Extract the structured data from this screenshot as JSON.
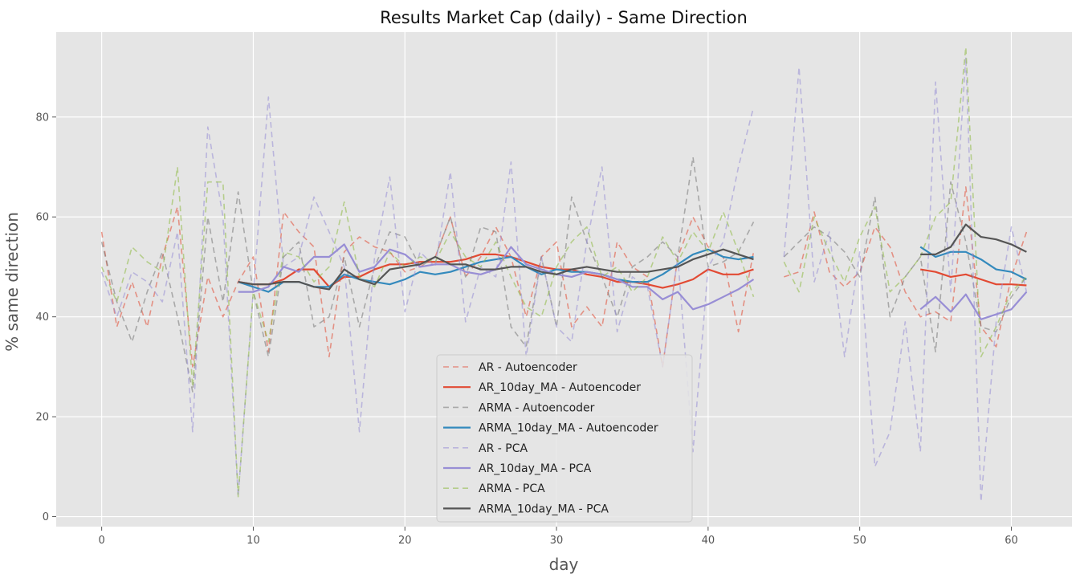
{
  "chart_data": {
    "type": "line",
    "title": "Results Market Cap (daily) - Same Direction",
    "xlabel": "day",
    "ylabel": "% same direction",
    "xlim": [
      -3,
      64
    ],
    "ylim": [
      -2,
      97
    ],
    "xticks": [
      0,
      10,
      20,
      30,
      40,
      50,
      60
    ],
    "yticks": [
      0,
      20,
      40,
      60,
      80
    ],
    "grid": true,
    "legend_position": "lower-center",
    "background": "#e5e5e5",
    "series": [
      {
        "name": "AR - Autoencoder",
        "color": "#E24A33",
        "dashed": true,
        "y": [
          57,
          38,
          47,
          38,
          52,
          62,
          30,
          48,
          40,
          47,
          52,
          33,
          61,
          57,
          54,
          32,
          53,
          56,
          54,
          53,
          49,
          50,
          52,
          60,
          48,
          52,
          58,
          52,
          40,
          52,
          55,
          38,
          42,
          38,
          55,
          50,
          48,
          30,
          52,
          60,
          54,
          52,
          37,
          53,
          null,
          48,
          49,
          61,
          49,
          46,
          49,
          58,
          54,
          45,
          40,
          41,
          39,
          66,
          38,
          34,
          48,
          57
        ]
      },
      {
        "name": "AR_10day_MA - Autoencoder",
        "color": "#E24A33",
        "dashed": false,
        "y": [
          null,
          null,
          null,
          null,
          null,
          null,
          null,
          null,
          null,
          47,
          46.5,
          46.5,
          47.5,
          49.5,
          49.5,
          46,
          48,
          48,
          49.5,
          50.5,
          50.5,
          51,
          51,
          51,
          51.5,
          52.5,
          52.5,
          52,
          51,
          50,
          49.5,
          49.5,
          48.5,
          48,
          47,
          47,
          46.5,
          45.8,
          46.5,
          47.5,
          49.5,
          48.5,
          48.5,
          49.5,
          null,
          null,
          null,
          null,
          null,
          null,
          null,
          null,
          null,
          null,
          49.5,
          49,
          48,
          48.5,
          47.5,
          46.5,
          46.5,
          46.3
        ]
      },
      {
        "name": "ARMA - Autoencoder",
        "color": "#777777",
        "dashed": true,
        "y": [
          55,
          43,
          35,
          45,
          53,
          40,
          25,
          60,
          43,
          65,
          45,
          32,
          52,
          55,
          38,
          40,
          52,
          38,
          50,
          57,
          56,
          50,
          52,
          60,
          48,
          58,
          57,
          38,
          34,
          52,
          38,
          64,
          55,
          48,
          40,
          50,
          52,
          55,
          52,
          72,
          50,
          51,
          53,
          59,
          null,
          52,
          55,
          58,
          56,
          53,
          48,
          64,
          40,
          48,
          52,
          33,
          67,
          55,
          38,
          37,
          44,
          48
        ]
      },
      {
        "name": "ARMA_10day_MA - Autoencoder",
        "color": "#348ABD",
        "dashed": false,
        "y": [
          null,
          null,
          null,
          null,
          null,
          null,
          null,
          null,
          null,
          47,
          46,
          45,
          47,
          47,
          46,
          46,
          48.5,
          47.5,
          47,
          46.5,
          47.5,
          49,
          48.5,
          49,
          50,
          51,
          51.5,
          52,
          50,
          48.5,
          49.5,
          49,
          49,
          48.5,
          47.5,
          47,
          47,
          48.5,
          50.5,
          52.5,
          53.5,
          52,
          51.5,
          52,
          null,
          null,
          null,
          null,
          null,
          null,
          null,
          null,
          null,
          null,
          54,
          52,
          53,
          53,
          51.5,
          49.5,
          49,
          47.5
        ]
      },
      {
        "name": "AR - PCA",
        "color": "#988ED5",
        "dashed": true,
        "y": [
          49,
          40,
          49,
          47,
          43,
          57,
          17,
          78,
          60,
          4,
          45,
          84,
          50,
          52,
          64,
          57,
          50,
          17,
          52,
          68,
          41,
          53,
          50,
          69,
          39,
          50,
          48,
          71,
          32,
          52,
          38,
          35,
          55,
          70,
          37,
          48,
          46,
          30,
          52,
          13,
          50,
          55,
          70,
          82,
          null,
          52,
          90,
          47,
          57,
          32,
          53,
          10,
          17,
          39,
          13,
          87,
          45,
          92,
          3,
          39,
          58,
          45
        ]
      },
      {
        "name": "AR_10day_MA - PCA",
        "color": "#988ED5",
        "dashed": false,
        "y": [
          null,
          null,
          null,
          null,
          null,
          null,
          null,
          null,
          null,
          45,
          45,
          46,
          50,
          49,
          52,
          52,
          54.5,
          49,
          50,
          53.5,
          52.5,
          50,
          50.5,
          50.5,
          49,
          48.5,
          49.5,
          54,
          50.5,
          49.5,
          48.5,
          48,
          49,
          48.5,
          47.5,
          46,
          46,
          43.5,
          45,
          41.5,
          42.5,
          44,
          45.5,
          47.5,
          null,
          null,
          null,
          null,
          null,
          null,
          null,
          null,
          null,
          null,
          41.5,
          44,
          41,
          44.5,
          39.5,
          40.5,
          41.5,
          45
        ]
      },
      {
        "name": "ARMA - PCA",
        "color": "#8EBA42",
        "dashed": true,
        "y": [
          50,
          43,
          54,
          51,
          49,
          70,
          26,
          67,
          67,
          4,
          45,
          35,
          53,
          52,
          47,
          50,
          63,
          48,
          46,
          53,
          50,
          52,
          51,
          57,
          52,
          50,
          55,
          48,
          42,
          40,
          50,
          55,
          58,
          48,
          50,
          45,
          48,
          56,
          51,
          57,
          53,
          61,
          53,
          44,
          null,
          51,
          45,
          60,
          53,
          47,
          56,
          62,
          45,
          48,
          52,
          60,
          63,
          94,
          32,
          38,
          45,
          48
        ]
      },
      {
        "name": "ARMA_10day_MA - PCA",
        "color": "#555555",
        "dashed": false,
        "y": [
          null,
          null,
          null,
          null,
          null,
          null,
          null,
          null,
          null,
          47,
          46.5,
          46.5,
          47,
          47,
          46,
          45.5,
          49.5,
          47.5,
          46.5,
          49.5,
          50,
          50.5,
          52,
          50.5,
          50.5,
          49.5,
          49.5,
          50,
          50,
          49,
          48.5,
          49.5,
          50,
          49.5,
          49,
          49,
          49,
          49.5,
          50,
          51.5,
          52.5,
          53.5,
          52.5,
          51.5,
          null,
          null,
          null,
          null,
          null,
          null,
          null,
          null,
          null,
          null,
          52.5,
          52.5,
          54,
          58.5,
          56,
          55.5,
          54.5,
          53
        ]
      }
    ]
  }
}
